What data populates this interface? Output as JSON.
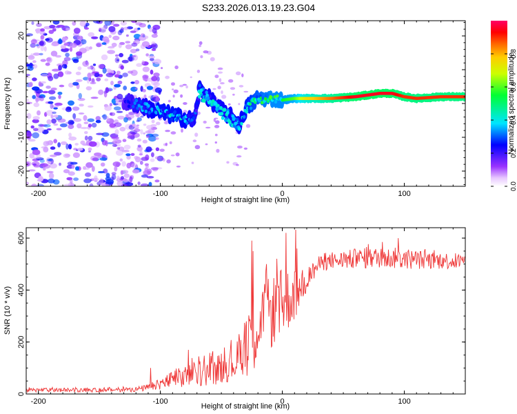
{
  "figure_title": "S233.2026.013.19.23.G04",
  "chart_data": [
    {
      "type": "heatmap",
      "panel": "spectrogram",
      "xlabel": "Height of straight line (km)",
      "ylabel": "Frequency (Hz)",
      "xlim": [
        -210,
        150
      ],
      "ylim": [
        -24.5,
        24.5
      ],
      "xticks": [
        -200,
        -100,
        0,
        100
      ],
      "yticks": [
        -20,
        -10,
        0,
        10,
        20
      ],
      "colorbar": {
        "label": "Normalized spectral amplitude",
        "range": [
          0,
          1
        ],
        "ticks": [
          0.0,
          0.2,
          0.4,
          0.6,
          0.8
        ]
      },
      "ridge": {
        "description": "dominant frequency ridge vs height",
        "x": [
          -130,
          -120,
          -110,
          -100,
          -90,
          -80,
          -72,
          -68,
          -60,
          -50,
          -40,
          -35,
          -30,
          -20,
          -10,
          0,
          10,
          20,
          40,
          60,
          80,
          90,
          100,
          110,
          130,
          150
        ],
        "y": [
          0.5,
          0,
          -1.5,
          -2.5,
          -3.5,
          -4.5,
          -5,
          4.5,
          1.5,
          -2,
          -4.5,
          -6.5,
          -1.5,
          1.5,
          1.5,
          1,
          1.5,
          1.5,
          1.5,
          2,
          3,
          3,
          2,
          1.5,
          2,
          2
        ],
        "amplitude": [
          0.2,
          0.3,
          0.35,
          0.4,
          0.4,
          0.38,
          0.3,
          0.35,
          0.35,
          0.35,
          0.35,
          0.35,
          0.4,
          0.5,
          0.55,
          0.55,
          0.6,
          0.75,
          0.85,
          0.95,
          0.95,
          0.95,
          0.9,
          0.9,
          0.9,
          0.9
        ]
      },
      "noise_region": [
        -210,
        -115
      ]
    },
    {
      "type": "line",
      "panel": "snr",
      "xlabel": "Height of straight line (km)",
      "ylabel": "SNR (10 * v/v)",
      "xlim": [
        -210,
        150
      ],
      "ylim": [
        0,
        640
      ],
      "xticks": [
        -200,
        -100,
        0,
        100
      ],
      "yticks": [
        0,
        200,
        400,
        600
      ],
      "color": "#ee3333",
      "series": [
        {
          "name": "SNR",
          "envelope_x": [
            -210,
            -150,
            -120,
            -105,
            -100,
            -90,
            -80,
            -70,
            -60,
            -50,
            -40,
            -35,
            -30,
            -26,
            -20,
            -15,
            -10,
            -5,
            0,
            5,
            10,
            15,
            20,
            30,
            40,
            60,
            80,
            100,
            120,
            150
          ],
          "envelope_y": [
            15,
            15,
            18,
            28,
            40,
            55,
            65,
            80,
            85,
            100,
            120,
            140,
            220,
            230,
            270,
            290,
            310,
            330,
            350,
            365,
            380,
            400,
            440,
            500,
            510,
            520,
            525,
            520,
            515,
            510
          ],
          "spread_y": [
            8,
            8,
            10,
            15,
            25,
            35,
            45,
            50,
            55,
            60,
            70,
            80,
            150,
            170,
            140,
            140,
            140,
            140,
            130,
            120,
            100,
            80,
            50,
            30,
            30,
            40,
            40,
            40,
            35,
            30
          ],
          "spikes": [
            {
              "x": -108,
              "y": 100
            },
            {
              "x": -77,
              "y": 170
            },
            {
              "x": -50,
              "y": 155
            },
            {
              "x": -30,
              "y": 260
            },
            {
              "x": -25,
              "y": 590
            },
            {
              "x": -24,
              "y": 550
            },
            {
              "x": -13,
              "y": 500
            },
            {
              "x": 3,
              "y": 620
            },
            {
              "x": 11,
              "y": 632
            },
            {
              "x": 12,
              "y": 560
            },
            {
              "x": 82,
              "y": 585
            },
            {
              "x": 95,
              "y": 600
            }
          ]
        }
      ]
    }
  ]
}
